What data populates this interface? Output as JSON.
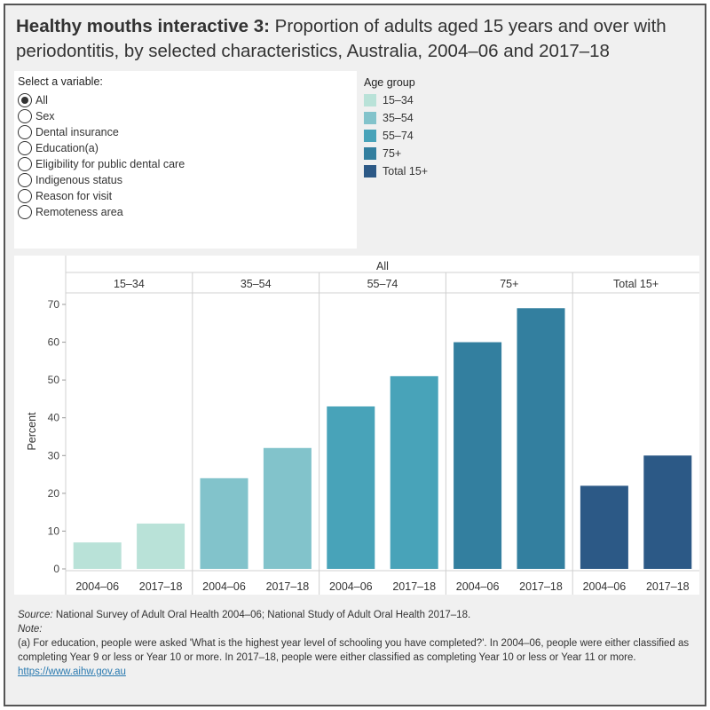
{
  "title": {
    "bold": "Healthy mouths interactive 3:",
    "rest": " Proportion of adults aged 15 years and over with periodontitis, by selected characteristics, Australia, 2004–06 and 2017–18"
  },
  "variable_selector": {
    "title": "Select a variable:",
    "selected_index": 0,
    "options": [
      "All",
      "Sex",
      "Dental insurance",
      "Education(a)",
      "Eligibility for public dental care",
      "Indigenous status",
      "Reason for visit",
      "Remoteness area"
    ]
  },
  "legend": {
    "title": "Age group",
    "items": [
      {
        "label": "15–34",
        "color": "#b9e2d8"
      },
      {
        "label": "35–54",
        "color": "#82c3cb"
      },
      {
        "label": "55–74",
        "color": "#48a3b9"
      },
      {
        "label": "75+",
        "color": "#337f9f"
      },
      {
        "label": "Total 15+",
        "color": "#2c5986"
      }
    ]
  },
  "chart_data": {
    "type": "bar",
    "header": "All",
    "ylabel": "Percent",
    "ylim": [
      0,
      72
    ],
    "yticks": [
      0,
      10,
      20,
      30,
      40,
      50,
      60,
      70
    ],
    "period_labels": [
      "2004–06",
      "2017–18"
    ],
    "groups": [
      {
        "name": "15–34",
        "color": "#b9e2d8",
        "values": [
          7,
          12
        ]
      },
      {
        "name": "35–54",
        "color": "#82c3cb",
        "values": [
          24,
          32
        ]
      },
      {
        "name": "55–74",
        "color": "#48a3b9",
        "values": [
          43,
          51
        ]
      },
      {
        "name": "75+",
        "color": "#337f9f",
        "values": [
          60,
          69
        ]
      },
      {
        "name": "Total 15+",
        "color": "#2c5986",
        "values": [
          22,
          30
        ]
      }
    ]
  },
  "footer": {
    "source_label": "Source:",
    "source_text": " National Survey of Adult Oral Health 2004–06; National Study of Adult Oral Health 2017–18.",
    "note_label": "Note:",
    "note_text": "(a) For education, people were asked 'What is the highest year level of schooling you have completed?'. In 2004–06, people were either classified as completing Year 9 or less or Year 10 or more. In 2017–18, people were either classified as completing Year 10 or less or Year 11 or more.",
    "link": "https://www.aihw.gov.au"
  }
}
